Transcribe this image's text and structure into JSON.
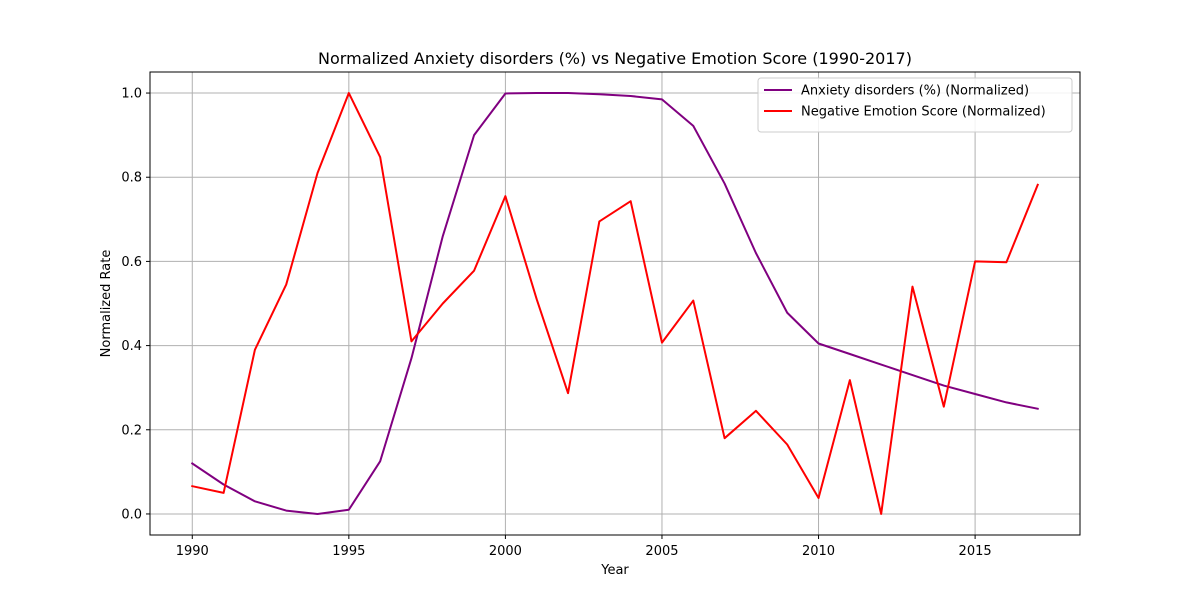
{
  "chart_data": {
    "type": "line",
    "title": "Normalized Anxiety disorders (%) vs Negative Emotion Score (1990-2017)",
    "xlabel": "Year",
    "ylabel": "Normalized Rate",
    "x": [
      1990,
      1991,
      1992,
      1993,
      1994,
      1995,
      1996,
      1997,
      1998,
      1999,
      2000,
      2001,
      2002,
      2003,
      2004,
      2005,
      2006,
      2007,
      2008,
      2009,
      2010,
      2011,
      2012,
      2013,
      2014,
      2015,
      2016,
      2017
    ],
    "xlim": [
      1988.65,
      2018.35
    ],
    "ylim": [
      -0.05,
      1.05
    ],
    "xticks": [
      1990,
      1995,
      2000,
      2005,
      2010,
      2015
    ],
    "xtick_labels": [
      "1990",
      "1995",
      "2000",
      "2005",
      "2010",
      "2015"
    ],
    "yticks": [
      0.0,
      0.2,
      0.4,
      0.6,
      0.8,
      1.0
    ],
    "ytick_labels": [
      "0.0",
      "0.2",
      "0.4",
      "0.6",
      "0.8",
      "1.0"
    ],
    "grid": true,
    "legend_position": "top-right",
    "series": [
      {
        "name": "Anxiety disorders (%) (Normalized)",
        "color": "#800080",
        "values": [
          0.12,
          0.07,
          0.03,
          0.008,
          0.0,
          0.01,
          0.125,
          0.37,
          0.66,
          0.9,
          0.999,
          1.0,
          1.0,
          0.997,
          0.993,
          0.985,
          0.922,
          0.785,
          0.62,
          0.478,
          0.405,
          0.38,
          0.355,
          0.33,
          0.305,
          0.285,
          0.265,
          0.25
        ]
      },
      {
        "name": "Negative Emotion Score (Normalized)",
        "color": "#ff0000",
        "values": [
          0.066,
          0.05,
          0.39,
          0.545,
          0.81,
          1.0,
          0.848,
          0.41,
          0.5,
          0.578,
          0.755,
          0.51,
          0.287,
          0.695,
          0.743,
          0.407,
          0.507,
          0.18,
          0.245,
          0.165,
          0.038,
          0.318,
          0.0,
          0.54,
          0.255,
          0.6,
          0.598,
          0.782
        ]
      }
    ]
  }
}
